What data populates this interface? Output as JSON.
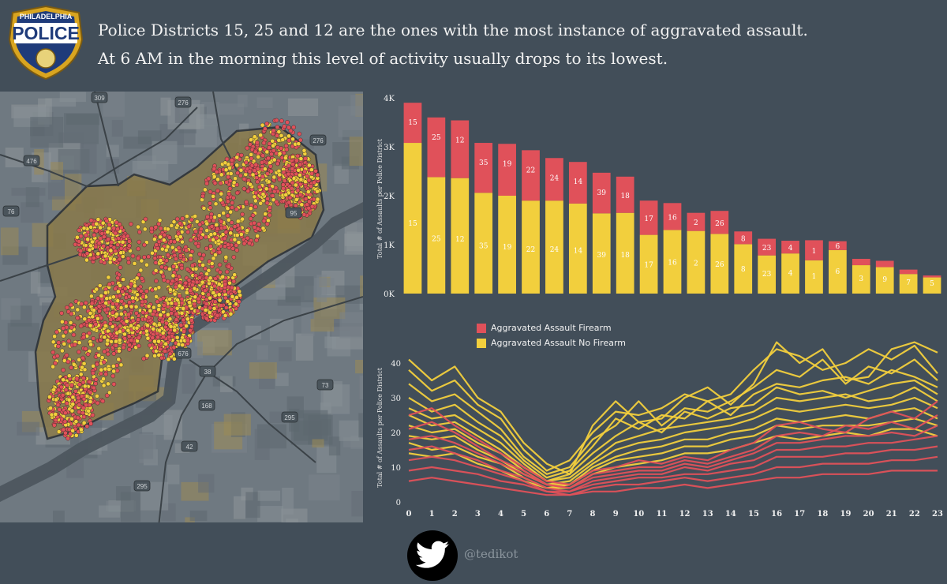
{
  "header": {
    "logo_top": "PHILADELPHIA",
    "logo_main": "POLICE",
    "line1": "Police Districts 15, 25 and 12 are the ones with the most instance of aggravated assault.",
    "line2": "At 6 AM in the morning this level of activity usually drops to its lowest."
  },
  "map": {
    "route_labels": [
      "309",
      "276",
      "476",
      "276",
      "95",
      "76",
      "676",
      "38",
      "73",
      "168",
      "295",
      "42",
      "295"
    ]
  },
  "colors": {
    "firearm": "#e0515a",
    "no_firearm": "#f2cf3d",
    "background": "#424e59"
  },
  "chart_data": [
    {
      "type": "bar",
      "stacked": true,
      "ylabel": "Total # of Assaults per Police District",
      "ylim": [
        0,
        4000
      ],
      "yticks": [
        "0K",
        "1K",
        "2K",
        "3K",
        "4K"
      ],
      "ytick_values": [
        0,
        1000,
        2000,
        3000,
        4000
      ],
      "categories": [
        "15",
        "25",
        "12",
        "35",
        "19",
        "22",
        "24",
        "14",
        "39",
        "18",
        "17",
        "16",
        "2",
        "26",
        "8",
        "23",
        "4",
        "1",
        "6",
        "3",
        "9",
        "7",
        "5"
      ],
      "series": [
        {
          "name": "Aggravated Assault No Firearm",
          "values": [
            3080,
            2380,
            2360,
            2060,
            2000,
            1900,
            1900,
            1840,
            1640,
            1650,
            1200,
            1300,
            1280,
            1220,
            1010,
            780,
            820,
            680,
            890,
            580,
            540,
            400,
            330
          ]
        },
        {
          "name": "Aggravated Assault Firearm",
          "values": [
            820,
            1220,
            1180,
            1020,
            1060,
            1030,
            870,
            850,
            830,
            740,
            700,
            550,
            370,
            470,
            260,
            340,
            260,
            410,
            180,
            130,
            130,
            90,
            40
          ]
        }
      ],
      "totals": [
        3900,
        3600,
        3540,
        3080,
        3060,
        2930,
        2770,
        2690,
        2470,
        2390,
        1900,
        1850,
        1650,
        1690,
        1270,
        1120,
        1080,
        1090,
        1070,
        710,
        670,
        490,
        370
      ]
    },
    {
      "type": "line",
      "ylabel": "Total # of Assaults per Police District",
      "x": [
        0,
        1,
        2,
        3,
        4,
        5,
        6,
        7,
        8,
        9,
        10,
        11,
        12,
        13,
        14,
        15,
        16,
        17,
        18,
        19,
        20,
        21,
        22,
        23
      ],
      "ylim": [
        0,
        45
      ],
      "yticks": [
        0,
        10,
        20,
        30,
        40
      ],
      "legend": [
        "Aggravated Assault Firearm",
        "Aggravated Assault No Firearm"
      ],
      "series": [
        {
          "name": "Aggravated Assault No Firearm",
          "values": [
            41,
            35,
            39,
            30,
            26,
            17,
            11,
            8,
            22,
            29,
            23,
            24,
            30,
            33,
            28,
            34,
            46,
            40,
            44,
            35,
            36,
            44,
            46,
            43
          ]
        },
        {
          "name": "Aggravated Assault No Firearm",
          "values": [
            38,
            32,
            35,
            28,
            24,
            15,
            9,
            12,
            20,
            26,
            25,
            27,
            31,
            29,
            31,
            38,
            44,
            42,
            38,
            40,
            44,
            41,
            45,
            37
          ]
        },
        {
          "name": "Aggravated Assault No Firearm",
          "values": [
            34,
            29,
            31,
            26,
            21,
            13,
            8,
            10,
            18,
            22,
            29,
            22,
            27,
            26,
            29,
            33,
            38,
            36,
            41,
            34,
            39,
            37,
            41,
            35
          ]
        },
        {
          "name": "Aggravated Assault No Firearm",
          "values": [
            30,
            26,
            28,
            23,
            19,
            12,
            7,
            9,
            16,
            24,
            21,
            25,
            24,
            29,
            25,
            31,
            34,
            33,
            35,
            36,
            34,
            38,
            36,
            33
          ]
        },
        {
          "name": "Aggravated Assault No Firearm",
          "values": [
            27,
            24,
            25,
            21,
            17,
            11,
            6,
            8,
            14,
            19,
            23,
            20,
            26,
            24,
            27,
            28,
            33,
            31,
            32,
            30,
            32,
            34,
            35,
            31
          ]
        },
        {
          "name": "Aggravated Assault No Firearm",
          "values": [
            25,
            22,
            23,
            19,
            15,
            10,
            6,
            7,
            12,
            17,
            19,
            21,
            22,
            23,
            24,
            26,
            30,
            29,
            30,
            31,
            29,
            30,
            33,
            29
          ]
        },
        {
          "name": "Aggravated Assault No Firearm",
          "values": [
            22,
            20,
            21,
            17,
            14,
            9,
            5,
            6,
            11,
            15,
            17,
            18,
            20,
            21,
            22,
            24,
            27,
            26,
            27,
            28,
            27,
            28,
            30,
            27
          ]
        },
        {
          "name": "Aggravated Assault No Firearm",
          "values": [
            19,
            18,
            19,
            15,
            12,
            8,
            5,
            5,
            10,
            13,
            15,
            16,
            18,
            18,
            20,
            21,
            24,
            23,
            24,
            25,
            24,
            26,
            27,
            24
          ]
        },
        {
          "name": "Aggravated Assault No Firearm",
          "values": [
            17,
            15,
            16,
            13,
            11,
            7,
            4,
            5,
            9,
            12,
            13,
            14,
            16,
            16,
            18,
            19,
            22,
            21,
            22,
            22,
            22,
            23,
            24,
            22
          ]
        },
        {
          "name": "Aggravated Assault No Firearm",
          "values": [
            14,
            13,
            14,
            11,
            9,
            6,
            4,
            4,
            8,
            10,
            11,
            12,
            14,
            14,
            15,
            17,
            19,
            18,
            19,
            20,
            19,
            21,
            21,
            19
          ]
        },
        {
          "name": "Aggravated Assault Firearm",
          "values": [
            25,
            27,
            22,
            18,
            14,
            10,
            6,
            5,
            9,
            10,
            12,
            11,
            13,
            12,
            15,
            17,
            22,
            23,
            21,
            20,
            24,
            26,
            24,
            29
          ]
        },
        {
          "name": "Aggravated Assault Firearm",
          "values": [
            21,
            23,
            20,
            16,
            12,
            9,
            5,
            4,
            8,
            9,
            10,
            10,
            12,
            11,
            13,
            15,
            19,
            20,
            19,
            22,
            21,
            23,
            21,
            25
          ]
        },
        {
          "name": "Aggravated Assault Firearm",
          "values": [
            18,
            19,
            17,
            14,
            11,
            8,
            5,
            4,
            7,
            8,
            9,
            9,
            11,
            10,
            12,
            14,
            17,
            17,
            18,
            19,
            19,
            20,
            19,
            22
          ]
        },
        {
          "name": "Aggravated Assault Firearm",
          "values": [
            15,
            16,
            14,
            12,
            9,
            7,
            4,
            3,
            6,
            7,
            8,
            8,
            10,
            9,
            11,
            12,
            15,
            15,
            16,
            16,
            17,
            17,
            18,
            19
          ]
        },
        {
          "name": "Aggravated Assault Firearm",
          "values": [
            12,
            13,
            12,
            10,
            8,
            6,
            3,
            3,
            5,
            6,
            7,
            7,
            8,
            8,
            9,
            10,
            13,
            13,
            13,
            14,
            14,
            15,
            15,
            16
          ]
        },
        {
          "name": "Aggravated Assault Firearm",
          "values": [
            9,
            10,
            9,
            8,
            6,
            5,
            3,
            2,
            4,
            5,
            5,
            6,
            7,
            6,
            7,
            8,
            10,
            10,
            11,
            11,
            11,
            12,
            12,
            13
          ]
        },
        {
          "name": "Aggravated Assault Firearm",
          "values": [
            6,
            7,
            6,
            5,
            4,
            3,
            2,
            2,
            3,
            3,
            4,
            4,
            5,
            4,
            5,
            6,
            7,
            7,
            8,
            8,
            8,
            9,
            9,
            9
          ]
        }
      ]
    }
  ],
  "legend": {
    "firearm_label": "Aggravated Assault Firearm",
    "no_firearm_label": "Aggravated Assault No Firearm"
  },
  "footer": {
    "handle": "@tedikot",
    "icon": "twitter-bird-icon"
  }
}
